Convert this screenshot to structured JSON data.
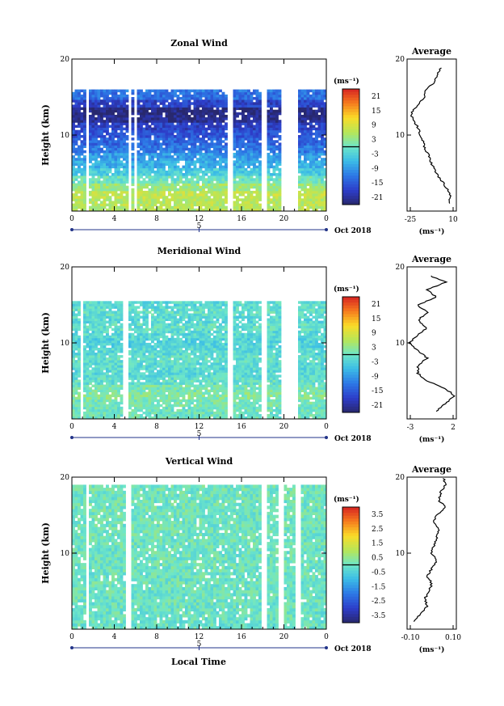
{
  "figure": {
    "xlabel": "Local Time",
    "date_label": "Oct 2018",
    "date_marker_day": "5"
  },
  "panels": [
    {
      "key": "zonal",
      "title": "Zonal Wind",
      "ylabel": "Height (km)",
      "y_ticks": [
        "10",
        "20"
      ],
      "x_ticks": [
        "0",
        "4",
        "8",
        "12",
        "16",
        "20",
        "0"
      ],
      "cbar_unit": "(ms⁻¹)",
      "cbar_ticks": [
        "21",
        "15",
        "9",
        "3",
        "-3",
        "-9",
        "-15",
        "-21"
      ],
      "avg_title": "Average",
      "avg_xticks": [
        "-25",
        "10"
      ],
      "avg_unit": "(ms⁻¹)",
      "avg_yticks": [
        "10",
        "20"
      ]
    },
    {
      "key": "meridional",
      "title": "Meridional Wind",
      "ylabel": "Height (km)",
      "y_ticks": [
        "10",
        "20"
      ],
      "x_ticks": [
        "0",
        "4",
        "8",
        "12",
        "16",
        "20",
        "0"
      ],
      "cbar_unit": "(ms⁻¹)",
      "cbar_ticks": [
        "21",
        "15",
        "9",
        "3",
        "-3",
        "-9",
        "-15",
        "-21"
      ],
      "avg_title": "Average",
      "avg_xticks": [
        "-3",
        "2"
      ],
      "avg_unit": "(ms⁻¹)",
      "avg_yticks": [
        "10",
        "20"
      ]
    },
    {
      "key": "vertical",
      "title": "Vertical Wind",
      "ylabel": "Height (km)",
      "y_ticks": [
        "10",
        "20"
      ],
      "x_ticks": [
        "0",
        "4",
        "8",
        "12",
        "16",
        "20",
        "0"
      ],
      "cbar_unit": "(ms⁻¹)",
      "cbar_ticks": [
        "3.5",
        "2.5",
        "1.5",
        "0.5",
        "-0.5",
        "-1.5",
        "-2.5",
        "-3.5"
      ],
      "avg_title": "Average",
      "avg_xticks": [
        "-0.10",
        "0.10"
      ],
      "avg_unit": "(ms⁻¹)",
      "avg_yticks": [
        "10",
        "20"
      ]
    }
  ],
  "chart_data": [
    {
      "type": "heatmap",
      "title": "Zonal Wind",
      "xlabel": "Local Time",
      "ylabel": "Height (km)",
      "xlim": [
        0,
        24
      ],
      "ylim": [
        0,
        20
      ],
      "clim": [
        -24,
        24
      ],
      "gap_hours": [
        [
          1.4,
          1.6
        ],
        [
          5.3,
          5.6
        ],
        [
          5.9,
          6.1
        ],
        [
          14.8,
          15.1
        ],
        [
          17.8,
          18.4
        ],
        [
          19.7,
          21.2
        ]
      ],
      "profile": [
        {
          "h": 1,
          "v": 6
        },
        {
          "h": 2,
          "v": 7
        },
        {
          "h": 3,
          "v": 4
        },
        {
          "h": 4,
          "v": 0
        },
        {
          "h": 5,
          "v": -4
        },
        {
          "h": 6,
          "v": -7
        },
        {
          "h": 7,
          "v": -9
        },
        {
          "h": 8,
          "v": -12
        },
        {
          "h": 9,
          "v": -14
        },
        {
          "h": 10,
          "v": -16
        },
        {
          "h": 11,
          "v": -18
        },
        {
          "h": 12,
          "v": -22
        },
        {
          "h": 13,
          "v": -23
        },
        {
          "h": 14,
          "v": -18
        },
        {
          "h": 15,
          "v": -13
        },
        {
          "h": 16,
          "v": -12
        },
        {
          "h": 17,
          "v": -5
        },
        {
          "h": 18,
          "v": -3
        },
        {
          "h": 19,
          "v": 0
        }
      ],
      "fill_top_km": 16.0
    },
    {
      "type": "heatmap",
      "title": "Meridional Wind",
      "xlabel": "Local Time",
      "ylabel": "Height (km)",
      "xlim": [
        0,
        24
      ],
      "ylim": [
        0,
        20
      ],
      "clim": [
        -24,
        24
      ],
      "gap_hours": [
        [
          0.8,
          1.1
        ],
        [
          4.8,
          5.3
        ],
        [
          14.8,
          15.1
        ],
        [
          17.8,
          18.4
        ],
        [
          19.7,
          21.2
        ]
      ],
      "profile": [
        {
          "h": 1,
          "v": 0
        },
        {
          "h": 2,
          "v": 1
        },
        {
          "h": 3,
          "v": 2
        },
        {
          "h": 4,
          "v": 1
        },
        {
          "h": 5,
          "v": -1
        },
        {
          "h": 6,
          "v": -2
        },
        {
          "h": 7,
          "v": -2
        },
        {
          "h": 8,
          "v": -1
        },
        {
          "h": 9,
          "v": -2
        },
        {
          "h": 10,
          "v": -3
        },
        {
          "h": 11,
          "v": -2
        },
        {
          "h": 12,
          "v": -1
        },
        {
          "h": 13,
          "v": -2
        },
        {
          "h": 14,
          "v": -1
        },
        {
          "h": 15,
          "v": -2
        },
        {
          "h": 16,
          "v": 0
        },
        {
          "h": 17,
          "v": -1
        },
        {
          "h": 18,
          "v": 1
        },
        {
          "h": 19,
          "v": -1
        }
      ],
      "fill_top_km": 15.5
    },
    {
      "type": "heatmap",
      "title": "Vertical Wind",
      "xlabel": "Local Time",
      "ylabel": "Height (km)",
      "xlim": [
        0,
        24
      ],
      "ylim": [
        0,
        20
      ],
      "clim": [
        -4,
        4
      ],
      "gap_hours": [
        [
          1.4,
          1.7
        ],
        [
          5.2,
          5.5
        ],
        [
          17.8,
          18.4
        ],
        [
          19.4,
          19.9
        ],
        [
          21.2,
          21.5
        ]
      ],
      "profile": [
        {
          "h": 1,
          "v": -0.08
        },
        {
          "h": 2,
          "v": -0.05
        },
        {
          "h": 3,
          "v": -0.02
        },
        {
          "h": 4,
          "v": -0.03
        },
        {
          "h": 5,
          "v": -0.01
        },
        {
          "h": 6,
          "v": 0.0
        },
        {
          "h": 7,
          "v": -0.02
        },
        {
          "h": 8,
          "v": 0.0
        },
        {
          "h": 9,
          "v": 0.02
        },
        {
          "h": 10,
          "v": 0.0
        },
        {
          "h": 11,
          "v": 0.01
        },
        {
          "h": 12,
          "v": 0.02
        },
        {
          "h": 13,
          "v": 0.03
        },
        {
          "h": 14,
          "v": 0.01
        },
        {
          "h": 15,
          "v": 0.02
        },
        {
          "h": 16,
          "v": 0.06
        },
        {
          "h": 17,
          "v": 0.03
        },
        {
          "h": 18,
          "v": 0.04
        },
        {
          "h": 19,
          "v": 0.06
        },
        {
          "h": 20,
          "v": 0.05
        }
      ],
      "fill_top_km": 19.0
    }
  ]
}
